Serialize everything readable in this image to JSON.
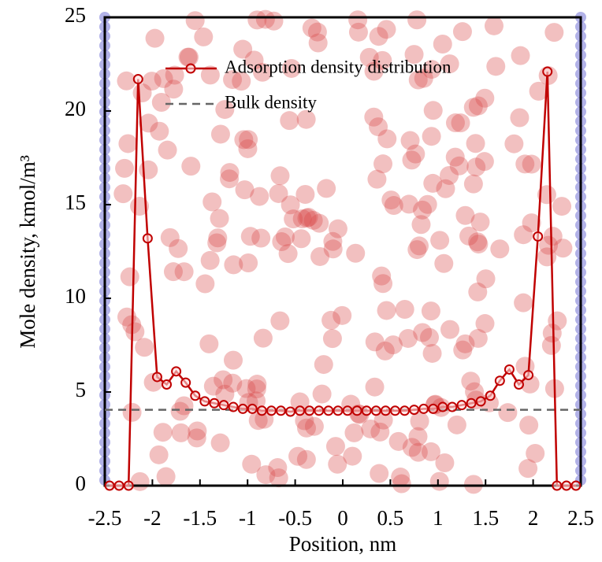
{
  "chart_data": {
    "type": "line",
    "xlabel": "Position, nm",
    "ylabel": "Mole density, kmol/m³",
    "x": [
      -2.45,
      -2.35,
      -2.25,
      -2.15,
      -2.05,
      -1.95,
      -1.85,
      -1.75,
      -1.65,
      -1.55,
      -1.45,
      -1.35,
      -1.25,
      -1.15,
      -1.05,
      -0.95,
      -0.85,
      -0.75,
      -0.65,
      -0.55,
      -0.45,
      -0.35,
      -0.25,
      -0.15,
      -0.05,
      0.05,
      0.15,
      0.25,
      0.35,
      0.45,
      0.55,
      0.65,
      0.75,
      0.85,
      0.95,
      1.05,
      1.15,
      1.25,
      1.35,
      1.45,
      1.55,
      1.65,
      1.75,
      1.85,
      1.95,
      2.05,
      2.15,
      2.25,
      2.35,
      2.45
    ],
    "series": [
      {
        "name": "Adsorption density distribution",
        "color": "#c00000",
        "values": [
          0,
          0,
          0,
          21.7,
          13.2,
          5.8,
          5.4,
          6.1,
          5.5,
          4.8,
          4.5,
          4.4,
          4.3,
          4.2,
          4.1,
          4.1,
          4.0,
          4.0,
          4.0,
          3.95,
          4.0,
          4.0,
          4.0,
          4.0,
          4.0,
          4.0,
          4.0,
          4.0,
          4.0,
          4.0,
          4.0,
          4.0,
          4.05,
          4.1,
          4.1,
          4.2,
          4.2,
          4.3,
          4.4,
          4.5,
          4.8,
          5.6,
          6.2,
          5.4,
          5.9,
          13.3,
          22.1,
          0,
          0,
          0
        ]
      }
    ],
    "reference_lines": [
      {
        "name": "Bulk density",
        "value": 4.05,
        "color": "#666666",
        "style": "dashed"
      }
    ],
    "xlim": [
      -2.5,
      2.5
    ],
    "xticks": [
      -2.5,
      -2,
      -1.5,
      -1,
      -0.5,
      0,
      0.5,
      1,
      1.5,
      2,
      2.5
    ],
    "ylim": [
      0,
      25
    ],
    "yticks": [
      0,
      5,
      10,
      15,
      20,
      25
    ],
    "legend": "top"
  }
}
